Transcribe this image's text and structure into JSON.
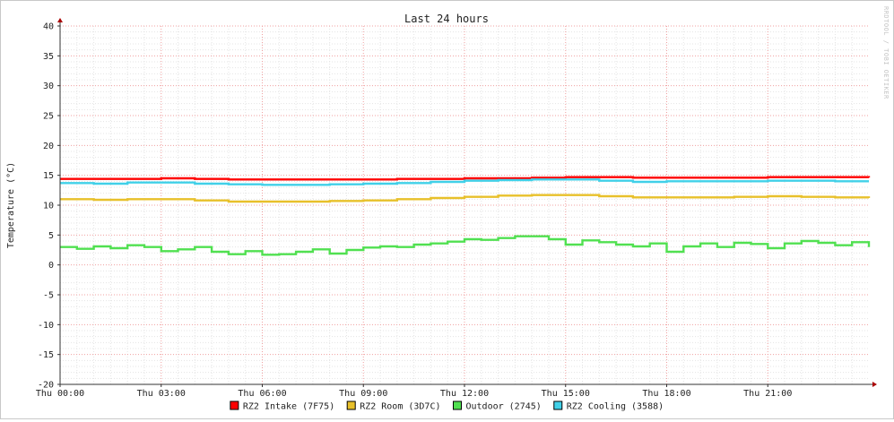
{
  "chart_data": {
    "type": "line",
    "title": "Last 24 hours",
    "ylabel": "Temperature (°C)",
    "xlabel": "",
    "watermark": "RRDTOOL / TOBI OETIKER",
    "x_range_hours": [
      0,
      24
    ],
    "ylim": [
      -20,
      40
    ],
    "y_ticks": [
      40,
      35,
      30,
      25,
      20,
      15,
      10,
      5,
      0,
      -5,
      -10,
      -15,
      -20
    ],
    "x_tick_labels": [
      {
        "label": "Thu 00:00",
        "hour": 0
      },
      {
        "label": "Thu 03:00",
        "hour": 3
      },
      {
        "label": "Thu 06:00",
        "hour": 6
      },
      {
        "label": "Thu 09:00",
        "hour": 9
      },
      {
        "label": "Thu 12:00",
        "hour": 12
      },
      {
        "label": "Thu 15:00",
        "hour": 15
      },
      {
        "label": "Thu 18:00",
        "hour": 18
      },
      {
        "label": "Thu 21:00",
        "hour": 21
      }
    ],
    "grid": true,
    "legend_position": "bottom",
    "series": [
      {
        "name": "RZ2 Intake (7F75)",
        "color": "#ff0000",
        "x": [
          0,
          1,
          2,
          3,
          4,
          5,
          6,
          7,
          8,
          9,
          10,
          11,
          12,
          13,
          14,
          15,
          16,
          17,
          18,
          19,
          20,
          21,
          22,
          23,
          24
        ],
        "y": [
          14.4,
          14.4,
          14.4,
          14.5,
          14.4,
          14.3,
          14.3,
          14.3,
          14.3,
          14.3,
          14.4,
          14.4,
          14.5,
          14.5,
          14.6,
          14.7,
          14.7,
          14.6,
          14.6,
          14.6,
          14.6,
          14.7,
          14.7,
          14.7,
          14.6
        ]
      },
      {
        "name": "RZ2 Room (3D7C)",
        "color": "#e8c02a",
        "x": [
          0,
          1,
          2,
          3,
          4,
          5,
          6,
          7,
          8,
          9,
          10,
          11,
          12,
          13,
          14,
          15,
          16,
          17,
          18,
          19,
          20,
          21,
          22,
          23,
          24
        ],
        "y": [
          11.0,
          10.9,
          11.0,
          11.0,
          10.8,
          10.6,
          10.6,
          10.6,
          10.7,
          10.8,
          11.0,
          11.2,
          11.4,
          11.6,
          11.7,
          11.7,
          11.5,
          11.3,
          11.3,
          11.3,
          11.4,
          11.5,
          11.4,
          11.3,
          11.2
        ]
      },
      {
        "name": "Outdoor (2745)",
        "color": "#50e050",
        "x": [
          0,
          0.5,
          1,
          1.5,
          2,
          2.5,
          3,
          3.5,
          4,
          4.5,
          5,
          5.5,
          6,
          6.5,
          7,
          7.5,
          8,
          8.5,
          9,
          9.5,
          10,
          10.5,
          11,
          11.5,
          12,
          12.5,
          13,
          13.5,
          14,
          14.5,
          15,
          15.5,
          16,
          16.5,
          17,
          17.5,
          18,
          18.5,
          19,
          19.5,
          20,
          20.5,
          21,
          21.5,
          22,
          22.5,
          23,
          23.5,
          24
        ],
        "y": [
          3.0,
          2.7,
          3.1,
          2.8,
          3.3,
          3.0,
          2.3,
          2.6,
          3.0,
          2.2,
          1.8,
          2.3,
          1.7,
          1.8,
          2.2,
          2.6,
          1.9,
          2.5,
          2.9,
          3.1,
          3.0,
          3.4,
          3.6,
          3.9,
          4.3,
          4.2,
          4.5,
          4.8,
          4.8,
          4.3,
          3.4,
          4.1,
          3.8,
          3.4,
          3.1,
          3.6,
          2.2,
          3.1,
          3.6,
          3.0,
          3.7,
          3.5,
          2.8,
          3.6,
          4.0,
          3.7,
          3.3,
          3.8,
          3.0
        ]
      },
      {
        "name": "RZ2 Cooling (3588)",
        "color": "#40d0e8",
        "x": [
          0,
          1,
          2,
          3,
          4,
          5,
          6,
          7,
          8,
          9,
          10,
          11,
          12,
          13,
          14,
          15,
          16,
          17,
          18,
          19,
          20,
          21,
          22,
          23,
          24
        ],
        "y": [
          13.7,
          13.6,
          13.8,
          13.8,
          13.6,
          13.5,
          13.4,
          13.4,
          13.5,
          13.6,
          13.7,
          13.9,
          14.1,
          14.2,
          14.3,
          14.3,
          14.1,
          13.9,
          14.0,
          14.0,
          14.0,
          14.1,
          14.1,
          14.0,
          14.0
        ]
      }
    ]
  }
}
